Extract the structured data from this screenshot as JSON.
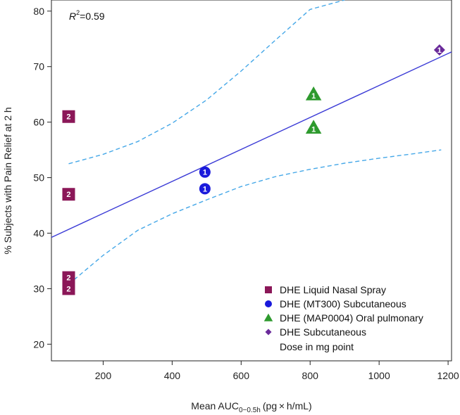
{
  "chart_data": {
    "type": "scatter",
    "xlabel_main": "Mean AUC",
    "xlabel_sub": "0−0.5h",
    "xlabel_units": "(pg × h/mL)",
    "ylabel": "% Subjects with Pain Relief at 2 h",
    "xlim": [
      50,
      1210
    ],
    "ylim": [
      17,
      82
    ],
    "xticks": [
      200,
      400,
      600,
      800,
      1000,
      1200
    ],
    "yticks": [
      20,
      30,
      40,
      50,
      60,
      70,
      80
    ],
    "r2_symbol": "R",
    "r2_exp": "2",
    "r2_value": "=0.59",
    "regression": {
      "intercept": 37.8,
      "slope": 0.0288,
      "x_start": 50,
      "x_end": 1210
    },
    "ci_upper": [
      [
        100,
        52.5
      ],
      [
        200,
        54.2
      ],
      [
        300,
        56.5
      ],
      [
        400,
        59.8
      ],
      [
        500,
        64.0
      ],
      [
        600,
        69.2
      ],
      [
        700,
        74.8
      ],
      [
        800,
        80.3
      ],
      [
        900,
        82.0
      ]
    ],
    "ci_lower": [
      [
        100,
        30.8
      ],
      [
        200,
        36.0
      ],
      [
        300,
        40.5
      ],
      [
        400,
        43.5
      ],
      [
        500,
        46.0
      ],
      [
        600,
        48.4
      ],
      [
        700,
        50.2
      ],
      [
        800,
        51.5
      ],
      [
        900,
        52.6
      ],
      [
        1000,
        53.5
      ],
      [
        1100,
        54.3
      ],
      [
        1180,
        55.0
      ]
    ],
    "series": [
      {
        "name": "DHE Liquid Nasal Spray",
        "marker": "square",
        "color": "#8b1758",
        "points": [
          {
            "x": 100,
            "y": 61,
            "dose": "2"
          },
          {
            "x": 100,
            "y": 47,
            "dose": "2"
          },
          {
            "x": 100,
            "y": 32,
            "dose": "2"
          },
          {
            "x": 100,
            "y": 30,
            "dose": "2"
          }
        ]
      },
      {
        "name": "DHE (MT300) Subcutaneous",
        "marker": "circle",
        "color": "#1a1adb",
        "points": [
          {
            "x": 495,
            "y": 51,
            "dose": "1"
          },
          {
            "x": 495,
            "y": 48,
            "dose": "1"
          }
        ]
      },
      {
        "name": "DHE (MAP0004) Oral pulmonary",
        "marker": "triangle",
        "color": "#2e9a2e",
        "points": [
          {
            "x": 810,
            "y": 65,
            "dose": "1"
          },
          {
            "x": 810,
            "y": 59,
            "dose": "1"
          }
        ]
      },
      {
        "name": "DHE Subcutaneous",
        "marker": "diamond",
        "color": "#6a2a9a",
        "points": [
          {
            "x": 1175,
            "y": 73,
            "dose": "1"
          }
        ]
      }
    ],
    "legend_note": "Dose in mg point",
    "colors": {
      "line": "#3b3bd6",
      "ci": "#46a8e8",
      "axis": "#222222"
    }
  }
}
